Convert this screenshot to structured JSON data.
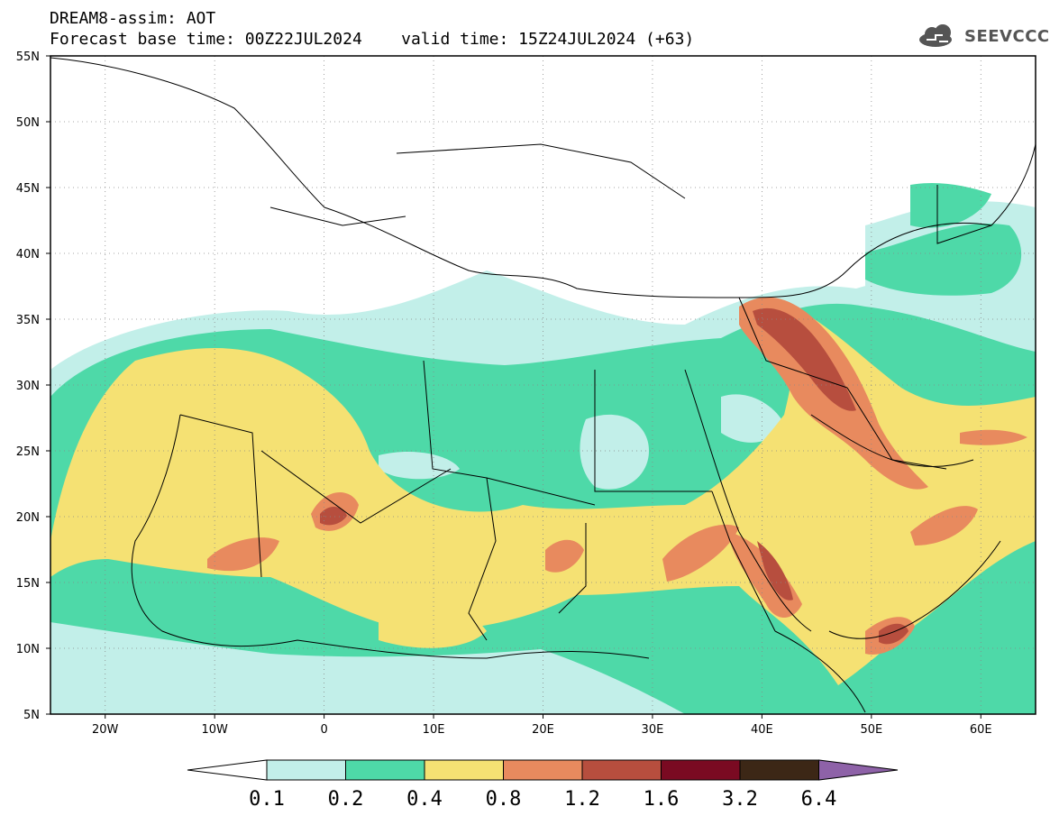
{
  "header": {
    "model_field": "DREAM8-assim: AOT",
    "base_time_label": "Forecast base time: 00Z22JUL2024",
    "valid_time_label": "valid time: 15Z24JUL2024 (+63)",
    "title_line2": "Forecast base time: 00Z22JUL2024    valid time: 15Z24JUL2024 (+63)"
  },
  "logo": {
    "text": "SEEVCCC",
    "icon": "cloud-icon",
    "color": "#555555"
  },
  "map": {
    "projection": "cylindrical-equidistant",
    "lon_range": [
      -25,
      65
    ],
    "lat_range": [
      5,
      55
    ],
    "lat_ticks": [
      {
        "value": 55,
        "label": "55N"
      },
      {
        "value": 50,
        "label": "50N"
      },
      {
        "value": 45,
        "label": "45N"
      },
      {
        "value": 40,
        "label": "40N"
      },
      {
        "value": 35,
        "label": "35N"
      },
      {
        "value": 30,
        "label": "30N"
      },
      {
        "value": 25,
        "label": "25N"
      },
      {
        "value": 20,
        "label": "20N"
      },
      {
        "value": 15,
        "label": "15N"
      },
      {
        "value": 10,
        "label": "10N"
      },
      {
        "value": 5,
        "label": "5N"
      }
    ],
    "lon_ticks": [
      {
        "value": -20,
        "label": "20W"
      },
      {
        "value": -10,
        "label": "10W"
      },
      {
        "value": 0,
        "label": "0"
      },
      {
        "value": 10,
        "label": "10E"
      },
      {
        "value": 20,
        "label": "20E"
      },
      {
        "value": 30,
        "label": "30E"
      },
      {
        "value": 40,
        "label": "40E"
      },
      {
        "value": 50,
        "label": "50E"
      },
      {
        "value": 60,
        "label": "60E"
      }
    ],
    "grid": "dotted"
  },
  "colorbar": {
    "levels": [
      "0.1",
      "0.2",
      "0.4",
      "0.8",
      "1.2",
      "1.6",
      "3.2",
      "6.4"
    ],
    "colors": [
      "#c2efe9",
      "#4ed9a8",
      "#f5e173",
      "#e88a5e",
      "#b74e3e",
      "#7a0a22",
      "#3c2716"
    ],
    "under_color": "#ffffff",
    "over_color": "#8e62a8"
  },
  "colors": {
    "c1": "#c2efe9",
    "c2": "#4ed9a8",
    "c3": "#f5e173",
    "c4": "#e88a5e",
    "c5": "#b74e3e",
    "c6": "#7a0a22",
    "c7": "#3c2716",
    "border": "#000000"
  }
}
